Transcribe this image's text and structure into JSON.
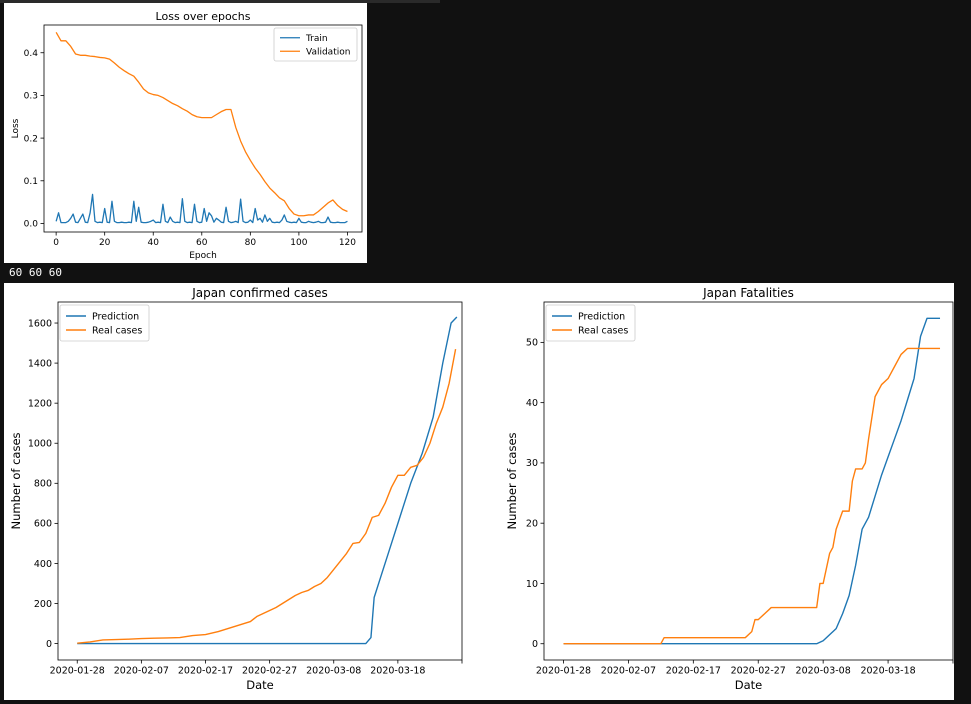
{
  "stdout_text": "60 60 60",
  "colors": {
    "blue": "#1f77b4",
    "orange": "#ff7f0e"
  },
  "chart_data": [
    {
      "type": "line",
      "title": "Loss over epochs",
      "xlabel": "Epoch",
      "ylabel": "Loss",
      "xlim": [
        -5,
        126
      ],
      "ylim": [
        -0.02,
        0.465
      ],
      "xticks": [
        0,
        20,
        40,
        60,
        80,
        100,
        120
      ],
      "xtick_labels": [
        "0",
        "20",
        "40",
        "60",
        "80",
        "100",
        "120"
      ],
      "yticks": [
        0.0,
        0.1,
        0.2,
        0.3,
        0.4
      ],
      "ytick_labels": [
        "0.0",
        "0.1",
        "0.2",
        "0.3",
        "0.4"
      ],
      "legend_position": "top-right",
      "series": [
        {
          "name": "Train",
          "color": "#1f77b4",
          "x": [
            0,
            1,
            2,
            3,
            4,
            5,
            6,
            7,
            8,
            9,
            10,
            11,
            12,
            13,
            14,
            15,
            16,
            17,
            18,
            19,
            20,
            21,
            22,
            23,
            24,
            25,
            26,
            27,
            28,
            29,
            30,
            31,
            32,
            33,
            34,
            35,
            36,
            37,
            38,
            39,
            40,
            41,
            42,
            43,
            44,
            45,
            46,
            47,
            48,
            49,
            50,
            51,
            52,
            53,
            54,
            55,
            56,
            57,
            58,
            59,
            60,
            61,
            62,
            63,
            64,
            65,
            66,
            67,
            68,
            69,
            70,
            71,
            72,
            73,
            74,
            75,
            76,
            77,
            78,
            79,
            80,
            81,
            82,
            83,
            84,
            85,
            86,
            87,
            88,
            89,
            90,
            91,
            92,
            93,
            94,
            95,
            96,
            97,
            98,
            99,
            100,
            101,
            102,
            103,
            104,
            105,
            106,
            107,
            108,
            109,
            110,
            111,
            112,
            113,
            114,
            115,
            116,
            117,
            118,
            119,
            120
          ],
          "y": [
            0.005,
            0.025,
            0.002,
            0.002,
            0.002,
            0.005,
            0.012,
            0.022,
            0.003,
            0.002,
            0.012,
            0.022,
            0.003,
            0.002,
            0.025,
            0.068,
            0.005,
            0.002,
            0.003,
            0.002,
            0.035,
            0.003,
            0.002,
            0.052,
            0.005,
            0.002,
            0.002,
            0.003,
            0.002,
            0.002,
            0.003,
            0.002,
            0.052,
            0.005,
            0.038,
            0.003,
            0.002,
            0.002,
            0.003,
            0.005,
            0.008,
            0.002,
            0.003,
            0.002,
            0.045,
            0.005,
            0.002,
            0.015,
            0.005,
            0.002,
            0.003,
            0.002,
            0.058,
            0.005,
            0.002,
            0.003,
            0.002,
            0.045,
            0.005,
            0.002,
            0.003,
            0.035,
            0.005,
            0.025,
            0.018,
            0.003,
            0.012,
            0.008,
            0.003,
            0.002,
            0.038,
            0.005,
            0.002,
            0.003,
            0.005,
            0.002,
            0.057,
            0.005,
            0.002,
            0.003,
            0.008,
            0.002,
            0.035,
            0.008,
            0.012,
            0.003,
            0.02,
            0.005,
            0.012,
            0.003,
            0.002,
            0.003,
            0.002,
            0.008,
            0.02,
            0.005,
            0.003,
            0.002,
            0.003,
            0.002,
            0.012,
            0.003,
            0.002,
            0.002,
            0.005,
            0.003,
            0.002,
            0.003,
            0.005,
            0.002,
            0.002,
            0.003,
            0.015,
            0.003,
            0.002,
            0.002,
            0.003,
            0.002,
            0.002,
            0.002,
            0.005
          ]
        },
        {
          "name": "Validation",
          "color": "#ff7f0e",
          "x": [
            0,
            2,
            4,
            6,
            8,
            10,
            12,
            14,
            16,
            18,
            20,
            22,
            24,
            26,
            28,
            30,
            32,
            34,
            36,
            38,
            40,
            42,
            44,
            46,
            48,
            50,
            52,
            54,
            56,
            58,
            60,
            62,
            64,
            66,
            68,
            70,
            72,
            74,
            76,
            78,
            80,
            82,
            84,
            86,
            88,
            90,
            92,
            94,
            96,
            98,
            100,
            102,
            104,
            106,
            108,
            110,
            112,
            114,
            116,
            118,
            120
          ],
          "y": [
            0.448,
            0.428,
            0.428,
            0.415,
            0.397,
            0.394,
            0.394,
            0.392,
            0.391,
            0.389,
            0.388,
            0.385,
            0.376,
            0.366,
            0.358,
            0.351,
            0.345,
            0.331,
            0.315,
            0.306,
            0.302,
            0.3,
            0.295,
            0.288,
            0.281,
            0.276,
            0.269,
            0.263,
            0.255,
            0.25,
            0.248,
            0.248,
            0.248,
            0.255,
            0.262,
            0.267,
            0.267,
            0.225,
            0.193,
            0.168,
            0.148,
            0.13,
            0.115,
            0.098,
            0.083,
            0.072,
            0.06,
            0.053,
            0.035,
            0.022,
            0.018,
            0.018,
            0.02,
            0.02,
            0.028,
            0.038,
            0.048,
            0.055,
            0.042,
            0.033,
            0.028
          ]
        }
      ]
    },
    {
      "type": "line",
      "title": "Japan confirmed cases",
      "xlabel": "Date",
      "ylabel": "Number of cases",
      "xlim": [
        -3,
        60
      ],
      "ylim": [
        -82,
        1705
      ],
      "xticks": [
        0,
        10,
        20,
        30,
        40,
        50,
        60
      ],
      "xtick_labels": [
        "2020-01-28",
        "2020-02-07",
        "2020-02-17",
        "2020-02-27",
        "2020-03-08",
        "2020-03-18",
        ""
      ],
      "yticks": [
        0,
        200,
        400,
        600,
        800,
        1000,
        1200,
        1400,
        1600
      ],
      "ytick_labels": [
        "0",
        "200",
        "400",
        "600",
        "800",
        "1000",
        "1200",
        "1400",
        "1600"
      ],
      "legend_position": "top-left",
      "series": [
        {
          "name": "Prediction",
          "color": "#1f77b4",
          "x": [
            0,
            45,
            45.8,
            46.3,
            47.3,
            48.7,
            50.2,
            52,
            53.8,
            55.5,
            57,
            58.3,
            59.2
          ],
          "y": [
            0,
            0,
            30,
            230,
            330,
            470,
            620,
            800,
            950,
            1130,
            1400,
            1600,
            1630
          ]
        },
        {
          "name": "Real cases",
          "color": "#ff7f0e",
          "x": [
            0,
            2,
            4,
            6,
            8,
            10,
            12,
            14,
            16,
            18,
            20,
            22,
            23,
            24,
            25,
            26,
            27,
            28,
            29,
            30,
            31,
            32,
            33,
            34,
            35,
            36,
            37,
            38,
            39,
            40,
            41,
            42,
            43,
            44,
            45,
            46,
            47,
            48,
            49,
            50,
            51,
            52,
            53,
            54,
            55,
            56,
            57,
            58,
            59
          ],
          "y": [
            2,
            8,
            18,
            20,
            22,
            25,
            27,
            28,
            30,
            40,
            45,
            60,
            70,
            80,
            90,
            100,
            110,
            135,
            150,
            165,
            180,
            200,
            220,
            240,
            255,
            265,
            285,
            300,
            330,
            370,
            410,
            450,
            500,
            505,
            550,
            630,
            640,
            700,
            780,
            840,
            840,
            880,
            890,
            930,
            1000,
            1100,
            1180,
            1300,
            1470
          ]
        }
      ]
    },
    {
      "type": "line",
      "title": "Japan Fatalities",
      "xlabel": "Date",
      "ylabel": "Number of cases",
      "xlim": [
        -3,
        60
      ],
      "ylim": [
        -2.7,
        56.7
      ],
      "xticks": [
        0,
        10,
        20,
        30,
        40,
        50,
        60
      ],
      "xtick_labels": [
        "2020-01-28",
        "2020-02-07",
        "2020-02-17",
        "2020-02-27",
        "2020-03-08",
        "2020-03-18",
        ""
      ],
      "yticks": [
        0,
        10,
        20,
        30,
        40,
        50
      ],
      "ytick_labels": [
        "0",
        "10",
        "20",
        "30",
        "40",
        "50"
      ],
      "legend_position": "top-left",
      "series": [
        {
          "name": "Prediction",
          "color": "#1f77b4",
          "x": [
            0,
            39,
            40,
            42,
            43,
            44,
            45,
            46,
            47,
            48,
            49,
            50,
            51,
            52,
            53,
            54,
            55,
            56,
            57,
            58
          ],
          "y": [
            0,
            0,
            0.5,
            2.5,
            5,
            8,
            13,
            19,
            21,
            24.5,
            28,
            31,
            34,
            37,
            40.5,
            44,
            51,
            54,
            54,
            54
          ]
        },
        {
          "name": "Real cases",
          "color": "#ff7f0e",
          "x": [
            0,
            15,
            15.5,
            28,
            29,
            29.5,
            30,
            31,
            32,
            38,
            39,
            39.5,
            40,
            41,
            41.5,
            42,
            43,
            44,
            44.5,
            45,
            46,
            46.5,
            47,
            48,
            49,
            50,
            51,
            52,
            53,
            54,
            55,
            56,
            57,
            58
          ],
          "y": [
            0,
            0,
            1,
            1,
            2,
            4,
            4,
            5,
            6,
            6,
            6,
            10,
            10,
            15,
            16,
            19,
            22,
            22,
            27,
            29,
            29,
            30,
            34,
            41,
            43,
            44,
            46,
            48,
            49,
            49,
            49,
            49,
            49,
            49
          ]
        }
      ]
    }
  ]
}
